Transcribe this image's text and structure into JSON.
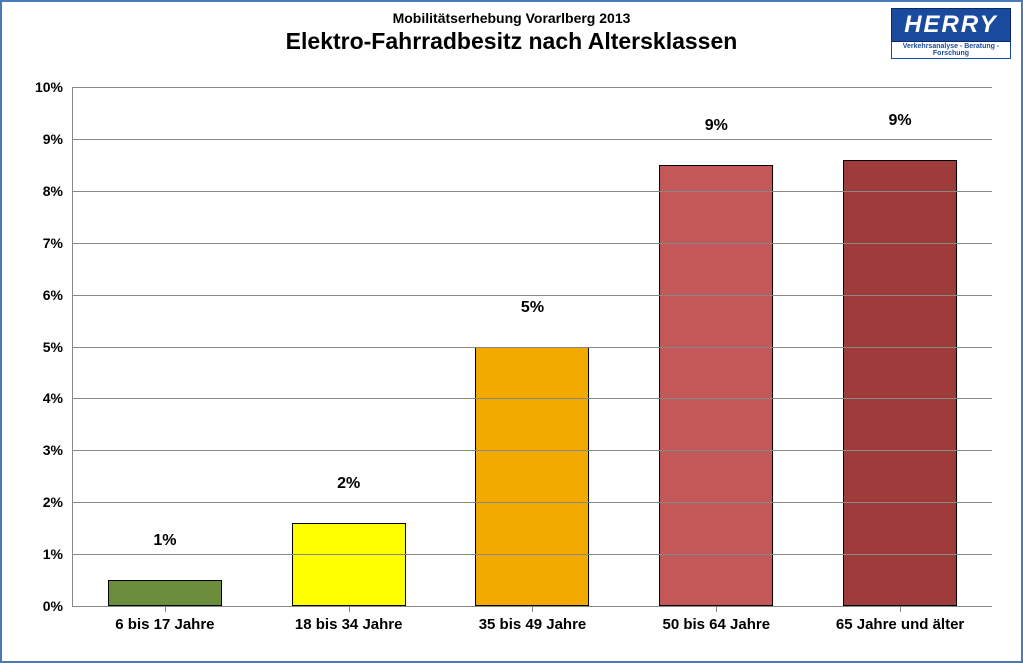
{
  "logo": {
    "main": "HERRY",
    "sub": "Verkehrsanalyse - Beratung - Forschung"
  },
  "chart": {
    "type": "bar",
    "supertitle": "Mobilitätserhebung Vorarlberg 2013",
    "title": "Elektro-Fahrradbesitz nach Altersklassen",
    "supertitle_fontsize": 14,
    "title_fontsize": 23,
    "categories": [
      "6 bis 17 Jahre",
      "18 bis 34 Jahre",
      "35 bis 49 Jahre",
      "50 bis 64 Jahre",
      "65 Jahre und älter"
    ],
    "display_labels": [
      "1%",
      "2%",
      "5%",
      "9%",
      "9%"
    ],
    "values": [
      0.5,
      1.6,
      5.0,
      8.5,
      8.6
    ],
    "bar_colors": [
      "#6b8e3d",
      "#ffff00",
      "#f2a900",
      "#c45858",
      "#9e3b3b"
    ],
    "ylim": [
      0,
      10
    ],
    "ytick_step": 1,
    "ytick_labels": [
      "0%",
      "1%",
      "2%",
      "3%",
      "4%",
      "5%",
      "6%",
      "7%",
      "8%",
      "9%",
      "10%"
    ],
    "bar_width_pct": 62,
    "background_color": "#ffffff",
    "grid_color": "#888888",
    "border_color": "#4a7ab8",
    "label_fontsize": 15,
    "value_label_fontsize": 16,
    "tick_fontsize": 14
  }
}
